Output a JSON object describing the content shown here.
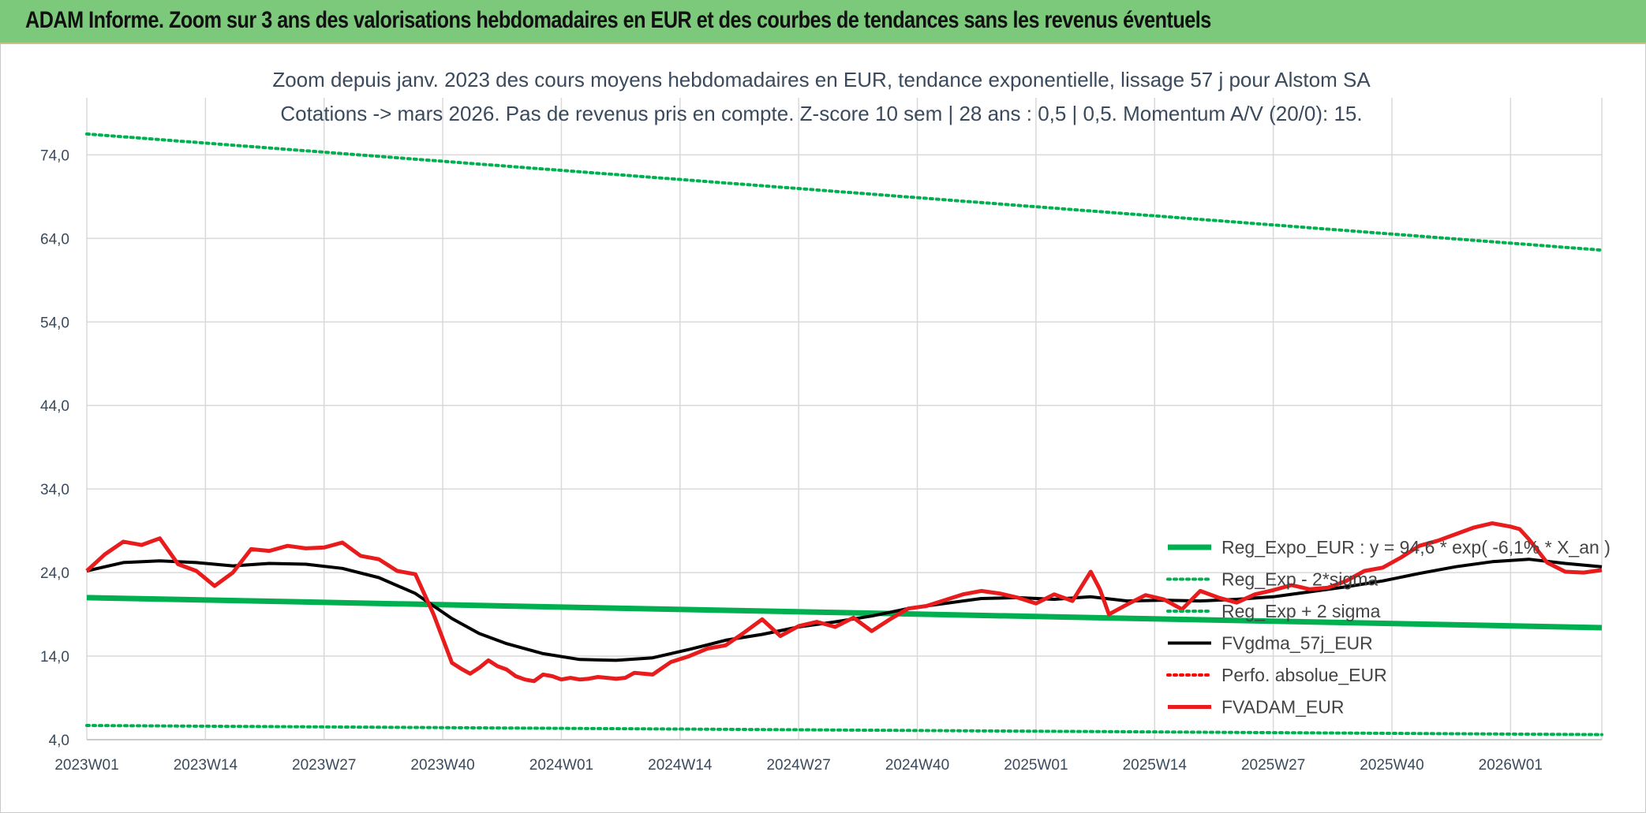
{
  "banner": {
    "title": "ADAM Informe. Zoom sur 3 ans des valorisations hebdomadaires en EUR et des courbes de tendances sans les revenus éventuels"
  },
  "chart_data": {
    "type": "line",
    "title": "Zoom depuis janv. 2023 des cours moyens hebdomadaires en EUR, tendance exponentielle, lissage 57 j pour Alstom SA",
    "subtitle": "Cotations -> mars 2026. Pas de revenus pris en compte. Z-score 10 sem | 28 ans : 0,5 | 0,5. Momentum A/V (20/0): 15.",
    "xlabel": "",
    "ylabel": "",
    "ylim": [
      4,
      78
    ],
    "y_ticks": [
      "74,0",
      "64,0",
      "54,0",
      "44,0",
      "34,0",
      "24,0",
      "14,0",
      "4,0"
    ],
    "x_ticks": [
      "2023W01",
      "2023W14",
      "2023W27",
      "2023W40",
      "2024W01",
      "2024W14",
      "2024W27",
      "2024W40",
      "2025W01",
      "2025W14",
      "2025W27",
      "2025W40",
      "2026W01"
    ],
    "x_range_weeks": [
      0,
      166
    ],
    "grid": true,
    "legend_position": "bottom-right",
    "series": [
      {
        "name": "Reg_Expo_EUR : y = 94,6 * exp( -6,1% * X_an )",
        "color": "#00b050",
        "style": "solid",
        "x": [
          0,
          166
        ],
        "y": [
          21.0,
          17.4
        ]
      },
      {
        "name": "Reg_Exp - 2*sigma",
        "color": "#00b050",
        "style": "dotted",
        "x": [
          0,
          166
        ],
        "y": [
          5.7,
          4.6
        ]
      },
      {
        "name": "Reg_Exp + 2 sigma",
        "color": "#00b050",
        "style": "dotted",
        "x": [
          0,
          166
        ],
        "y": [
          76.5,
          62.6
        ]
      },
      {
        "name": "FVgdma_57j_EUR",
        "color": "#000000",
        "style": "solid",
        "x": [
          0,
          4,
          8,
          12,
          16,
          20,
          24,
          28,
          32,
          36,
          40,
          43,
          46,
          50,
          54,
          58,
          62,
          66,
          70,
          74,
          78,
          82,
          86,
          90,
          94,
          98,
          102,
          106,
          110,
          114,
          118,
          122,
          126,
          130,
          134,
          138,
          142,
          146,
          150,
          154,
          158,
          162,
          166
        ],
        "y": [
          24.2,
          25.2,
          25.4,
          25.2,
          24.8,
          25.1,
          25.0,
          24.5,
          23.4,
          21.5,
          18.5,
          16.7,
          15.5,
          14.3,
          13.6,
          13.5,
          13.8,
          14.8,
          15.9,
          16.6,
          17.5,
          18.1,
          18.8,
          19.7,
          20.3,
          20.9,
          21.0,
          20.8,
          21.1,
          20.6,
          20.7,
          20.6,
          20.8,
          21.1,
          21.7,
          22.3,
          23.0,
          23.9,
          24.7,
          25.3,
          25.6,
          25.1,
          24.7
        ]
      },
      {
        "name": "Perfo. absolue_EUR",
        "color": "#ff0000",
        "style": "dotted",
        "x": [],
        "y": []
      },
      {
        "name": "FVADAM_EUR",
        "color": "#e81c1c",
        "style": "solid",
        "x": [
          0,
          2,
          4,
          6,
          8,
          10,
          12,
          14,
          16,
          18,
          20,
          22,
          24,
          26,
          28,
          30,
          32,
          34,
          36,
          38,
          40,
          41,
          42,
          43,
          44,
          45,
          46,
          47,
          48,
          49,
          50,
          51,
          52,
          53,
          54,
          55,
          56,
          57,
          58,
          59,
          60,
          62,
          64,
          66,
          68,
          70,
          72,
          74,
          76,
          78,
          80,
          82,
          84,
          86,
          88,
          90,
          92,
          94,
          96,
          98,
          100,
          102,
          104,
          106,
          108,
          110,
          111,
          112,
          114,
          116,
          118,
          120,
          122,
          124,
          126,
          128,
          130,
          132,
          134,
          136,
          138,
          140,
          142,
          144,
          146,
          148,
          150,
          152,
          154,
          156,
          157,
          158,
          160,
          162,
          164,
          166
        ],
        "y": [
          24.2,
          26.2,
          27.7,
          27.3,
          28.1,
          25.0,
          24.2,
          22.4,
          24.0,
          26.8,
          26.6,
          27.2,
          26.9,
          27.0,
          27.6,
          26.0,
          25.6,
          24.2,
          23.8,
          19.0,
          13.2,
          12.5,
          11.9,
          12.6,
          13.5,
          12.8,
          12.4,
          11.6,
          11.2,
          11.0,
          11.8,
          11.6,
          11.2,
          11.4,
          11.2,
          11.3,
          11.5,
          11.4,
          11.3,
          11.4,
          12.0,
          11.8,
          13.3,
          14.0,
          14.9,
          15.3,
          16.8,
          18.4,
          16.4,
          17.6,
          18.1,
          17.5,
          18.6,
          17.0,
          18.4,
          19.7,
          20.0,
          20.7,
          21.4,
          21.8,
          21.5,
          21.0,
          20.3,
          21.4,
          20.6,
          24.1,
          22.0,
          19.0,
          20.2,
          21.3,
          20.8,
          19.6,
          21.8,
          21.0,
          20.4,
          21.4,
          21.9,
          22.5,
          22.0,
          22.2,
          23.0,
          24.2,
          24.6,
          25.8,
          27.2,
          27.8,
          28.6,
          29.4,
          29.9,
          29.5,
          29.2,
          28.0,
          25.2,
          24.1,
          24.0,
          24.3
        ]
      }
    ]
  }
}
